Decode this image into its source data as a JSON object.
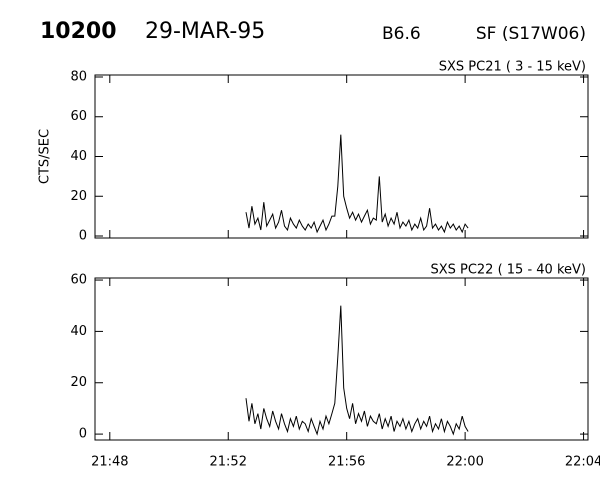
{
  "header": {
    "id": "10200",
    "date": "29-MAR-95",
    "class": "B6.6",
    "flare": "SF (S17W06)"
  },
  "chart_data": [
    {
      "type": "line",
      "title": "SXS PC21  (  3 - 15 keV)",
      "ylabel": "CTS/SEC",
      "xlim": [
        1307.5,
        1324.15
      ],
      "xticks": [
        1308,
        1312,
        1316,
        1320,
        1324
      ],
      "ylim": [
        -1,
        81
      ],
      "yticks": [
        0,
        20,
        40,
        60,
        80
      ],
      "x": [
        1312.6,
        1312.7,
        1312.8,
        1312.9,
        1313.0,
        1313.1,
        1313.2,
        1313.3,
        1313.4,
        1313.5,
        1313.6,
        1313.7,
        1313.8,
        1313.9,
        1314.0,
        1314.1,
        1314.2,
        1314.3,
        1314.4,
        1314.5,
        1314.6,
        1314.7,
        1314.8,
        1314.9,
        1315.0,
        1315.1,
        1315.2,
        1315.3,
        1315.4,
        1315.5,
        1315.6,
        1315.7,
        1315.8,
        1315.9,
        1316.0,
        1316.1,
        1316.2,
        1316.3,
        1316.4,
        1316.5,
        1316.6,
        1316.7,
        1316.8,
        1316.9,
        1317.0,
        1317.1,
        1317.2,
        1317.3,
        1317.4,
        1317.5,
        1317.6,
        1317.7,
        1317.8,
        1317.9,
        1318.0,
        1318.1,
        1318.2,
        1318.3,
        1318.4,
        1318.5,
        1318.6,
        1318.7,
        1318.8,
        1318.9,
        1319.0,
        1319.1,
        1319.2,
        1319.3,
        1319.4,
        1319.5,
        1319.6,
        1319.7,
        1319.8,
        1319.9,
        1320.0,
        1320.1
      ],
      "series": [
        {
          "color": "#000000",
          "values": [
            12,
            4,
            15,
            6,
            9,
            3,
            17,
            5,
            8,
            11,
            4,
            7,
            13,
            5,
            3,
            9,
            6,
            4,
            8,
            5,
            3,
            6,
            4,
            7,
            2,
            5,
            8,
            3,
            6,
            10,
            10,
            25,
            51,
            20,
            14,
            9,
            12,
            8,
            11,
            7,
            10,
            13,
            6,
            9,
            8,
            30,
            7,
            11,
            5,
            9,
            6,
            12,
            4,
            7,
            5,
            8,
            3,
            6,
            4,
            9,
            3,
            5,
            14,
            4,
            6,
            3,
            5,
            2,
            7,
            4,
            6,
            3,
            5,
            2,
            6,
            4
          ]
        }
      ]
    },
    {
      "type": "line",
      "title": "SXS PC22  ( 15 - 40 keV)",
      "xlim": [
        1307.5,
        1324.15
      ],
      "xticks": [
        {
          "value": 1308,
          "label": "21:48"
        },
        {
          "value": 1312,
          "label": "21:52"
        },
        {
          "value": 1316,
          "label": "21:56"
        },
        {
          "value": 1320,
          "label": "22:00"
        },
        {
          "value": 1324,
          "label": "22:04"
        }
      ],
      "ylim": [
        -2.3,
        60.8
      ],
      "yticks": [
        0,
        20,
        40,
        60
      ],
      "x": [
        1312.6,
        1312.7,
        1312.8,
        1312.9,
        1313.0,
        1313.1,
        1313.2,
        1313.3,
        1313.4,
        1313.5,
        1313.6,
        1313.7,
        1313.8,
        1313.9,
        1314.0,
        1314.1,
        1314.2,
        1314.3,
        1314.4,
        1314.5,
        1314.6,
        1314.7,
        1314.8,
        1314.9,
        1315.0,
        1315.1,
        1315.2,
        1315.3,
        1315.4,
        1315.5,
        1315.6,
        1315.7,
        1315.8,
        1315.9,
        1316.0,
        1316.1,
        1316.2,
        1316.3,
        1316.4,
        1316.5,
        1316.6,
        1316.7,
        1316.8,
        1316.9,
        1317.0,
        1317.1,
        1317.2,
        1317.3,
        1317.4,
        1317.5,
        1317.6,
        1317.7,
        1317.8,
        1317.9,
        1318.0,
        1318.1,
        1318.2,
        1318.3,
        1318.4,
        1318.5,
        1318.6,
        1318.7,
        1318.8,
        1318.9,
        1319.0,
        1319.1,
        1319.2,
        1319.3,
        1319.4,
        1319.5,
        1319.6,
        1319.7,
        1319.8,
        1319.9,
        1320.0,
        1320.1
      ],
      "series": [
        {
          "color": "#000000",
          "values": [
            14,
            5,
            12,
            4,
            8,
            2,
            10,
            6,
            3,
            9,
            5,
            2,
            8,
            4,
            1,
            6,
            3,
            7,
            2,
            5,
            4,
            1,
            6,
            3,
            0,
            5,
            2,
            7,
            4,
            8,
            12,
            30,
            50,
            18,
            10,
            6,
            12,
            4,
            8,
            5,
            9,
            3,
            7,
            5,
            4,
            8,
            2,
            6,
            3,
            7,
            1,
            5,
            3,
            6,
            2,
            5,
            1,
            4,
            6,
            2,
            5,
            3,
            7,
            1,
            4,
            2,
            6,
            1,
            5,
            3,
            0,
            4,
            2,
            7,
            3,
            1
          ]
        }
      ]
    }
  ]
}
